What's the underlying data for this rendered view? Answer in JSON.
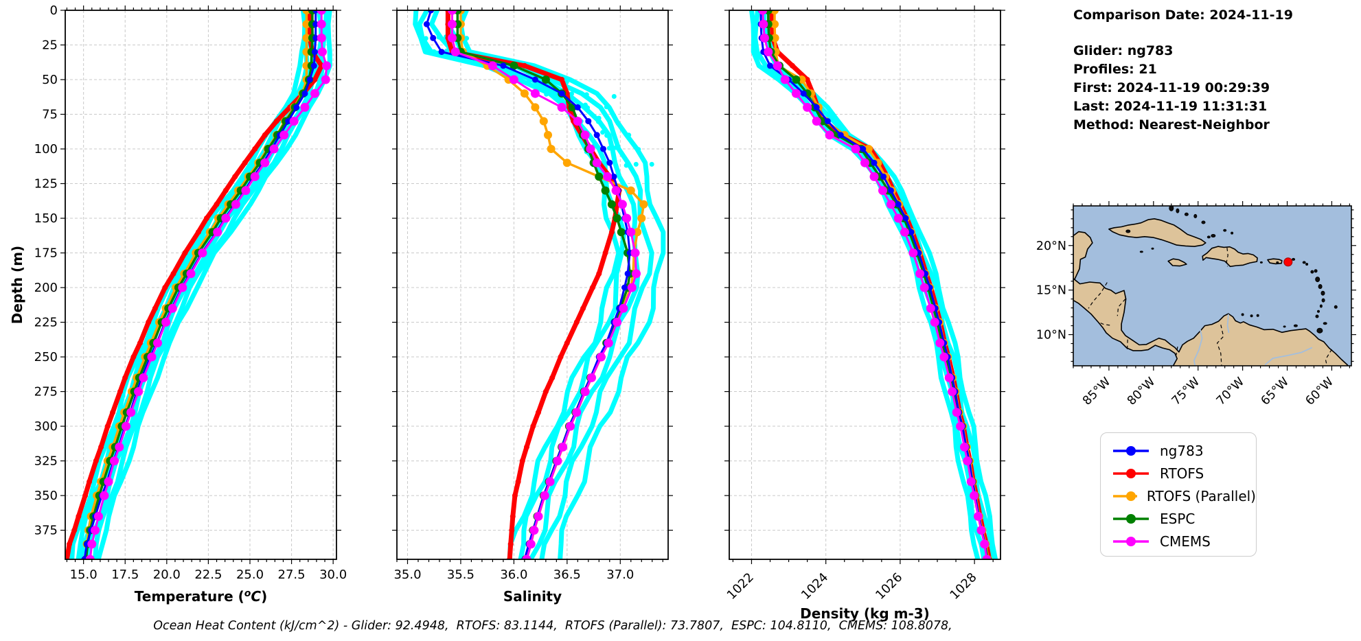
{
  "info_panel": {
    "comparison_date": "Comparison Date: 2024-11-19",
    "glider": "Glider: ng783",
    "profiles": "Profiles: 21",
    "first": "First: 2024-11-19 00:29:39",
    "last": "Last: 2024-11-19 11:31:31",
    "method": "Method: Nearest-Neighbor"
  },
  "footer": {
    "ocean_heat_content": "Ocean Heat Content (kJ/cm^2) - Glider: 92.4948,  RTOFS: 83.1144,  RTOFS (Parallel): 73.7807,  ESPC: 104.8110,  CMEMS: 108.8078,"
  },
  "legend": {
    "items": [
      {
        "label": "ng783",
        "color": "#0000ff"
      },
      {
        "label": "RTOFS",
        "color": "#ff0000"
      },
      {
        "label": "RTOFS (Parallel)",
        "color": "#ffa500"
      },
      {
        "label": "ESPC",
        "color": "#008000"
      },
      {
        "label": "CMEMS",
        "color": "#ff00ff"
      }
    ]
  },
  "map": {
    "extent": {
      "west_lon": 89.0,
      "east_lon": 57.8,
      "north_lat": 24.45,
      "south_lat": 6.5
    },
    "lat_ticks": [
      {
        "value": 20,
        "label": "20°N"
      },
      {
        "value": 15,
        "label": "15°N"
      },
      {
        "value": 10,
        "label": "10°N"
      }
    ],
    "lon_ticks": [
      {
        "value": 85,
        "label": "85°W"
      },
      {
        "value": 80,
        "label": "80°W"
      },
      {
        "value": 75,
        "label": "75°W"
      },
      {
        "value": 70,
        "label": "70°W"
      },
      {
        "value": 65,
        "label": "65°W"
      },
      {
        "value": 60,
        "label": "60°W"
      }
    ],
    "marker": {
      "lon_w": 64.9,
      "lat_n": 18.15,
      "color": "#ff0000"
    },
    "land_color": "#ddc39a",
    "water_color": "#a3bedd"
  },
  "chart_data": [
    {
      "type": "line",
      "name": "temperature",
      "xlabel": "Temperature (°C)",
      "sup_o": true,
      "ylabel": "Depth (m)",
      "xlim": [
        13.9,
        30.2
      ],
      "ylim": [
        0,
        396
      ],
      "minor_step": 0.5,
      "rotate_xticklabels": false,
      "xticks": [
        {
          "value": 15.0,
          "label": "15.0"
        },
        {
          "value": 17.5,
          "label": "17.5"
        },
        {
          "value": 20.0,
          "label": "20.0"
        },
        {
          "value": 22.5,
          "label": "22.5"
        },
        {
          "value": 25.0,
          "label": "25.0"
        },
        {
          "value": 27.5,
          "label": "27.5"
        },
        {
          "value": 30.0,
          "label": "30.0"
        }
      ],
      "yticks": [
        0,
        25,
        50,
        75,
        100,
        125,
        150,
        175,
        200,
        225,
        250,
        275,
        300,
        325,
        350,
        375
      ],
      "depths": [
        0,
        10,
        20,
        30,
        40,
        50,
        60,
        70,
        80,
        90,
        100,
        110,
        120,
        130,
        140,
        150,
        160,
        175,
        190,
        200,
        215,
        225,
        240,
        250,
        265,
        275,
        290,
        300,
        315,
        325,
        340,
        350,
        365,
        375,
        385,
        396
      ],
      "series": [
        {
          "name": "ng783",
          "color": "#0000ff",
          "values": [
            28.95,
            28.95,
            28.95,
            28.9,
            28.85,
            28.6,
            28.3,
            27.8,
            27.3,
            26.8,
            26.3,
            25.8,
            25.2,
            24.7,
            24.1,
            23.5,
            23.0,
            22.1,
            21.4,
            20.9,
            20.3,
            19.9,
            19.4,
            19.0,
            18.5,
            18.2,
            17.8,
            17.5,
            17.1,
            16.8,
            16.4,
            16.1,
            15.7,
            15.45,
            15.2,
            15.05
          ]
        },
        {
          "name": "RTOFS",
          "color": "#ff0000",
          "values": [
            28.6,
            28.6,
            28.6,
            28.75,
            29.3,
            28.9,
            28.2,
            27.4,
            26.6,
            25.9,
            25.3,
            24.7,
            24.1,
            23.55,
            23.0,
            22.4,
            21.9,
            21.1,
            20.4,
            19.9,
            19.3,
            18.9,
            18.4,
            18.0,
            17.5,
            17.2,
            16.75,
            16.45,
            16.05,
            15.75,
            15.35,
            15.1,
            14.7,
            14.45,
            14.15,
            14.0
          ]
        },
        {
          "name": "RTOFS (Parallel)",
          "color": "#ffa500",
          "values": [
            28.4,
            28.4,
            28.4,
            28.4,
            28.4,
            28.4,
            28.15,
            27.65,
            27.1,
            26.6,
            26.05,
            25.5,
            24.9,
            24.3,
            23.7,
            23.1,
            22.6,
            21.75,
            21.05,
            20.55,
            19.95,
            19.55,
            19.05,
            18.7,
            18.2,
            17.9,
            17.45,
            17.15,
            16.75,
            16.45,
            16.05,
            15.8,
            15.45,
            15.3,
            15.2,
            15.15
          ]
        },
        {
          "name": "ESPC",
          "color": "#008000",
          "values": [
            28.75,
            28.75,
            28.75,
            28.7,
            28.7,
            28.55,
            28.2,
            27.7,
            27.15,
            26.65,
            26.1,
            25.6,
            25.0,
            24.45,
            23.85,
            23.25,
            22.75,
            21.9,
            21.2,
            20.7,
            20.1,
            19.7,
            19.2,
            18.85,
            18.35,
            18.05,
            17.6,
            17.3,
            16.9,
            16.6,
            16.2,
            15.95,
            15.6,
            15.4,
            15.25,
            15.15
          ]
        },
        {
          "name": "CMEMS",
          "color": "#ff00ff",
          "values": [
            29.3,
            29.3,
            29.3,
            29.35,
            29.6,
            29.55,
            28.9,
            28.3,
            27.65,
            27.05,
            26.45,
            25.9,
            25.3,
            24.75,
            24.15,
            23.55,
            23.05,
            22.15,
            21.45,
            20.95,
            20.35,
            19.95,
            19.45,
            19.1,
            18.6,
            18.3,
            17.85,
            17.55,
            17.15,
            16.85,
            16.5,
            16.25,
            15.9,
            15.7,
            15.5,
            15.4
          ]
        }
      ],
      "envelope": {
        "name": "glider-profiles",
        "color": "#00ffff",
        "offsets": [
          -0.75,
          -0.45,
          -0.2,
          0.25,
          0.55,
          0.85
        ],
        "wiggle": 0.1,
        "scatter": false
      }
    },
    {
      "type": "line",
      "name": "salinity",
      "xlabel": "Salinity",
      "sup_o": false,
      "xlim": [
        34.9,
        37.45
      ],
      "ylim": [
        0,
        396
      ],
      "minor_step": 0.1,
      "rotate_xticklabels": false,
      "xticks": [
        {
          "value": 35.0,
          "label": "35.0"
        },
        {
          "value": 35.5,
          "label": "35.5"
        },
        {
          "value": 36.0,
          "label": "36.0"
        },
        {
          "value": 36.5,
          "label": "36.5"
        },
        {
          "value": 37.0,
          "label": "37.0"
        }
      ],
      "yticks": [
        0,
        25,
        50,
        75,
        100,
        125,
        150,
        175,
        200,
        225,
        250,
        275,
        300,
        325,
        350,
        375
      ],
      "depths": [
        0,
        10,
        20,
        30,
        40,
        50,
        60,
        70,
        80,
        90,
        100,
        110,
        120,
        130,
        140,
        150,
        160,
        175,
        190,
        200,
        215,
        225,
        240,
        250,
        265,
        275,
        290,
        300,
        315,
        325,
        340,
        350,
        365,
        375,
        385,
        396
      ],
      "series": [
        {
          "name": "ng783",
          "color": "#0000ff",
          "values": [
            35.22,
            35.18,
            35.24,
            35.32,
            35.9,
            36.2,
            36.45,
            36.6,
            36.7,
            36.78,
            36.84,
            36.9,
            36.94,
            36.98,
            37.01,
            37.04,
            37.07,
            37.09,
            37.07,
            37.04,
            36.99,
            36.94,
            36.87,
            36.8,
            36.72,
            36.66,
            36.58,
            36.52,
            36.45,
            36.4,
            36.33,
            36.28,
            36.22,
            36.18,
            36.14,
            36.1
          ]
        },
        {
          "name": "RTOFS",
          "color": "#ff0000",
          "values": [
            35.38,
            35.38,
            35.38,
            35.42,
            36.1,
            36.45,
            36.5,
            36.52,
            36.56,
            36.64,
            36.72,
            36.8,
            36.9,
            36.99,
            36.97,
            36.95,
            36.92,
            36.86,
            36.8,
            36.74,
            36.65,
            36.59,
            36.5,
            36.44,
            36.36,
            36.3,
            36.23,
            36.18,
            36.12,
            36.08,
            36.04,
            36.01,
            35.99,
            35.98,
            35.97,
            35.96
          ]
        },
        {
          "name": "RTOFS (Parallel)",
          "color": "#ffa500",
          "values": [
            35.5,
            35.5,
            35.5,
            35.52,
            35.75,
            35.95,
            36.1,
            36.2,
            36.28,
            36.32,
            36.35,
            36.5,
            36.8,
            37.1,
            37.22,
            37.2,
            37.16,
            37.13,
            37.12,
            37.1,
            37.02,
            36.96,
            36.88,
            36.82,
            36.73,
            36.67,
            36.59,
            36.53,
            36.46,
            36.41,
            36.34,
            36.29,
            36.23,
            36.19,
            36.16,
            36.12
          ]
        },
        {
          "name": "ESPC",
          "color": "#008000",
          "values": [
            35.47,
            35.47,
            35.47,
            35.5,
            36.0,
            36.3,
            36.45,
            36.55,
            36.6,
            36.65,
            36.7,
            36.75,
            36.8,
            36.86,
            36.92,
            36.97,
            37.01,
            37.07,
            37.09,
            37.07,
            37.0,
            36.95,
            36.87,
            36.81,
            36.72,
            36.66,
            36.58,
            36.52,
            36.45,
            36.4,
            36.33,
            36.28,
            36.22,
            36.18,
            36.15,
            36.11
          ]
        },
        {
          "name": "CMEMS",
          "color": "#ff00ff",
          "values": [
            35.42,
            35.42,
            35.42,
            35.45,
            35.8,
            36.0,
            36.2,
            36.45,
            36.6,
            36.67,
            36.72,
            36.78,
            36.88,
            36.96,
            37.02,
            37.06,
            37.1,
            37.14,
            37.15,
            37.11,
            37.03,
            36.97,
            36.89,
            36.82,
            36.73,
            36.67,
            36.59,
            36.53,
            36.46,
            36.41,
            36.34,
            36.29,
            36.23,
            36.19,
            36.16,
            36.12
          ]
        }
      ],
      "envelope": {
        "name": "glider-profiles",
        "color": "#00ffff",
        "offsets": [
          -0.14,
          -0.07,
          0.08,
          0.18,
          0.3
        ],
        "wiggle": 0.035,
        "scatter": true
      }
    },
    {
      "type": "line",
      "name": "density",
      "xlabel": "Density (kg m-3)",
      "sup_o": false,
      "xlim": [
        1021.4,
        1028.7
      ],
      "ylim": [
        0,
        396
      ],
      "minor_step": 0.5,
      "rotate_xticklabels": true,
      "xticks": [
        {
          "value": 1022,
          "label": "1022"
        },
        {
          "value": 1024,
          "label": "1024"
        },
        {
          "value": 1026,
          "label": "1026"
        },
        {
          "value": 1028,
          "label": "1028"
        }
      ],
      "yticks": [
        0,
        25,
        50,
        75,
        100,
        125,
        150,
        175,
        200,
        225,
        250,
        275,
        300,
        325,
        350,
        375
      ],
      "depths": [
        0,
        10,
        20,
        30,
        40,
        50,
        60,
        70,
        80,
        90,
        100,
        110,
        120,
        130,
        140,
        150,
        160,
        175,
        190,
        200,
        215,
        225,
        240,
        250,
        265,
        275,
        290,
        300,
        315,
        325,
        340,
        350,
        365,
        375,
        385,
        396
      ],
      "series": [
        {
          "name": "ng783",
          "color": "#0000ff",
          "values": [
            1022.25,
            1022.25,
            1022.27,
            1022.32,
            1022.5,
            1023.0,
            1023.4,
            1023.75,
            1024.05,
            1024.4,
            1025.0,
            1025.3,
            1025.55,
            1025.75,
            1025.95,
            1026.15,
            1026.3,
            1026.5,
            1026.68,
            1026.8,
            1026.95,
            1027.05,
            1027.18,
            1027.28,
            1027.4,
            1027.48,
            1027.58,
            1027.68,
            1027.78,
            1027.86,
            1027.95,
            1028.02,
            1028.12,
            1028.2,
            1028.28,
            1028.34
          ]
        },
        {
          "name": "RTOFS",
          "color": "#ff0000",
          "values": [
            1022.55,
            1022.55,
            1022.57,
            1022.7,
            1023.1,
            1023.5,
            1023.65,
            1023.78,
            1023.95,
            1024.45,
            1025.2,
            1025.45,
            1025.65,
            1025.82,
            1026.0,
            1026.18,
            1026.33,
            1026.53,
            1026.7,
            1026.83,
            1026.98,
            1027.08,
            1027.2,
            1027.3,
            1027.43,
            1027.5,
            1027.6,
            1027.7,
            1027.8,
            1027.88,
            1027.97,
            1028.05,
            1028.15,
            1028.23,
            1028.32,
            1028.4
          ]
        },
        {
          "name": "RTOFS (Parallel)",
          "color": "#ffa500",
          "values": [
            1022.62,
            1022.62,
            1022.63,
            1022.65,
            1022.72,
            1023.35,
            1023.6,
            1023.8,
            1024.0,
            1024.5,
            1025.15,
            1025.4,
            1025.6,
            1025.78,
            1025.97,
            1026.15,
            1026.3,
            1026.5,
            1026.68,
            1026.8,
            1026.95,
            1027.06,
            1027.18,
            1027.28,
            1027.41,
            1027.49,
            1027.59,
            1027.69,
            1027.79,
            1027.87,
            1027.96,
            1028.03,
            1028.13,
            1028.21,
            1028.3,
            1028.37
          ]
        },
        {
          "name": "ESPC",
          "color": "#008000",
          "values": [
            1022.45,
            1022.45,
            1022.47,
            1022.52,
            1022.75,
            1023.2,
            1023.5,
            1023.7,
            1023.9,
            1024.3,
            1024.95,
            1025.2,
            1025.45,
            1025.68,
            1025.9,
            1026.1,
            1026.25,
            1026.45,
            1026.63,
            1026.75,
            1026.9,
            1027.0,
            1027.13,
            1027.24,
            1027.37,
            1027.45,
            1027.56,
            1027.66,
            1027.76,
            1027.84,
            1027.94,
            1028.01,
            1028.11,
            1028.19,
            1028.28,
            1028.35
          ]
        },
        {
          "name": "CMEMS",
          "color": "#ff00ff",
          "values": [
            1022.3,
            1022.32,
            1022.35,
            1022.45,
            1022.7,
            1022.9,
            1023.2,
            1023.5,
            1023.75,
            1024.1,
            1024.8,
            1025.05,
            1025.3,
            1025.53,
            1025.75,
            1025.95,
            1026.12,
            1026.35,
            1026.53,
            1026.65,
            1026.82,
            1026.93,
            1027.07,
            1027.18,
            1027.32,
            1027.4,
            1027.52,
            1027.62,
            1027.73,
            1027.81,
            1027.91,
            1027.99,
            1028.1,
            1028.18,
            1028.27,
            1028.33
          ]
        }
      ],
      "envelope": {
        "name": "glider-profiles",
        "color": "#00ffff",
        "offsets": [
          -0.25,
          -0.13,
          0.13,
          0.25
        ],
        "wiggle": 0.05,
        "scatter": false
      }
    }
  ]
}
